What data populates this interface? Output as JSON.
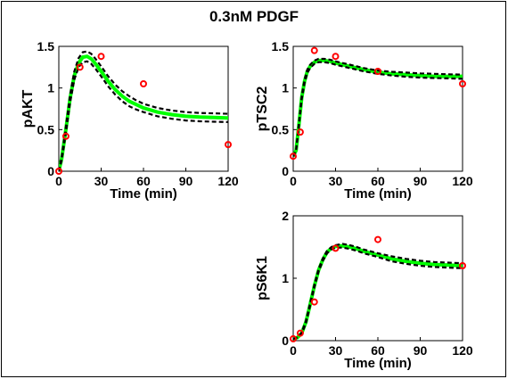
{
  "figure": {
    "title": "0.3nM PDGF"
  },
  "chart_data": [
    {
      "type": "line",
      "id": "pakt",
      "ylabel": "pAKT",
      "xlabel": "Time (min)",
      "xlim": [
        0,
        120
      ],
      "ylim": [
        0,
        1.5
      ],
      "xticks": [
        0,
        30,
        60,
        90,
        120
      ],
      "yticks": [
        0,
        0.5,
        1,
        1.5
      ],
      "ytick_labels": [
        "0",
        "0.5",
        "1",
        "1.5"
      ],
      "grid": false,
      "series": [
        {
          "role": "model-fit",
          "color": "#00ff00",
          "x": [
            0,
            2,
            5,
            8,
            11,
            14,
            17,
            20,
            23,
            26,
            30,
            35,
            40,
            45,
            50,
            55,
            60,
            70,
            80,
            90,
            100,
            110,
            120
          ],
          "y": [
            0,
            0.15,
            0.5,
            0.88,
            1.15,
            1.3,
            1.37,
            1.38,
            1.35,
            1.29,
            1.2,
            1.08,
            0.98,
            0.9,
            0.84,
            0.8,
            0.76,
            0.71,
            0.68,
            0.66,
            0.65,
            0.645,
            0.64
          ]
        },
        {
          "role": "upper-bound",
          "color": "#000000",
          "x": [
            0,
            2,
            5,
            8,
            11,
            14,
            17,
            20,
            23,
            26,
            30,
            35,
            40,
            45,
            50,
            55,
            60,
            70,
            80,
            90,
            100,
            110,
            120
          ],
          "y": [
            0,
            0.17,
            0.53,
            0.92,
            1.2,
            1.36,
            1.43,
            1.44,
            1.41,
            1.35,
            1.26,
            1.14,
            1.04,
            0.96,
            0.9,
            0.85,
            0.81,
            0.76,
            0.73,
            0.71,
            0.7,
            0.695,
            0.69
          ]
        },
        {
          "role": "lower-bound",
          "color": "#000000",
          "x": [
            0,
            2,
            5,
            8,
            11,
            14,
            17,
            20,
            23,
            26,
            30,
            35,
            40,
            45,
            50,
            55,
            60,
            70,
            80,
            90,
            100,
            110,
            120
          ],
          "y": [
            0,
            0.13,
            0.46,
            0.83,
            1.1,
            1.25,
            1.31,
            1.32,
            1.29,
            1.23,
            1.14,
            1.02,
            0.92,
            0.84,
            0.78,
            0.74,
            0.71,
            0.66,
            0.63,
            0.61,
            0.6,
            0.595,
            0.59
          ]
        }
      ],
      "data_points": {
        "color": "#ff0000",
        "x": [
          0,
          5,
          15,
          30,
          60,
          120
        ],
        "y": [
          0.0,
          0.42,
          1.25,
          1.38,
          1.05,
          0.32
        ]
      }
    },
    {
      "type": "line",
      "id": "ptsc2",
      "ylabel": "pTSC2",
      "xlabel": "Time (min)",
      "xlim": [
        0,
        120
      ],
      "ylim": [
        0,
        1.5
      ],
      "xticks": [
        0,
        30,
        60,
        90,
        120
      ],
      "yticks": [
        0,
        0.5,
        1,
        1.5
      ],
      "ytick_labels": [
        "0",
        "0.5",
        "1",
        "1.5"
      ],
      "grid": false,
      "series": [
        {
          "role": "model-fit",
          "color": "#00ff00",
          "x": [
            0,
            2,
            4,
            6,
            8,
            10,
            12,
            15,
            18,
            22,
            26,
            30,
            35,
            40,
            50,
            60,
            70,
            80,
            90,
            100,
            110,
            120
          ],
          "y": [
            0.18,
            0.25,
            0.55,
            0.88,
            1.08,
            1.2,
            1.26,
            1.31,
            1.33,
            1.33,
            1.32,
            1.3,
            1.28,
            1.26,
            1.22,
            1.19,
            1.17,
            1.16,
            1.15,
            1.14,
            1.14,
            1.14
          ]
        },
        {
          "role": "upper-bound",
          "color": "#000000",
          "x": [
            0,
            2,
            4,
            6,
            8,
            10,
            12,
            15,
            18,
            22,
            26,
            30,
            35,
            40,
            50,
            60,
            70,
            80,
            90,
            100,
            110,
            120
          ],
          "y": [
            0.18,
            0.26,
            0.57,
            0.9,
            1.1,
            1.22,
            1.28,
            1.33,
            1.35,
            1.35,
            1.34,
            1.32,
            1.3,
            1.28,
            1.24,
            1.21,
            1.195,
            1.185,
            1.175,
            1.17,
            1.165,
            1.16
          ]
        },
        {
          "role": "lower-bound",
          "color": "#000000",
          "x": [
            0,
            2,
            4,
            6,
            8,
            10,
            12,
            15,
            18,
            22,
            26,
            30,
            35,
            40,
            50,
            60,
            70,
            80,
            90,
            100,
            110,
            120
          ],
          "y": [
            0.18,
            0.24,
            0.53,
            0.86,
            1.06,
            1.18,
            1.24,
            1.29,
            1.31,
            1.31,
            1.3,
            1.28,
            1.26,
            1.24,
            1.2,
            1.17,
            1.15,
            1.135,
            1.125,
            1.12,
            1.115,
            1.11
          ]
        }
      ],
      "data_points": {
        "color": "#ff0000",
        "x": [
          0,
          5,
          15,
          30,
          60,
          120
        ],
        "y": [
          0.18,
          0.47,
          1.45,
          1.38,
          1.2,
          1.05
        ]
      }
    },
    {
      "type": "line",
      "id": "ps6k1",
      "ylabel": "pS6K1",
      "xlabel": "Time (min)",
      "xlim": [
        0,
        120
      ],
      "ylim": [
        0,
        2
      ],
      "xticks": [
        0,
        30,
        60,
        90,
        120
      ],
      "yticks": [
        0,
        1,
        2
      ],
      "ytick_labels": [
        "0",
        "1",
        "2"
      ],
      "grid": false,
      "series": [
        {
          "role": "model-fit",
          "color": "#00ff00",
          "x": [
            0,
            3,
            6,
            9,
            12,
            15,
            18,
            21,
            24,
            27,
            30,
            35,
            40,
            45,
            50,
            60,
            70,
            80,
            90,
            100,
            110,
            120
          ],
          "y": [
            0.03,
            0.05,
            0.12,
            0.3,
            0.58,
            0.88,
            1.13,
            1.3,
            1.42,
            1.48,
            1.51,
            1.52,
            1.5,
            1.47,
            1.43,
            1.37,
            1.31,
            1.27,
            1.24,
            1.22,
            1.21,
            1.2
          ]
        },
        {
          "role": "upper-bound",
          "color": "#000000",
          "x": [
            0,
            3,
            6,
            9,
            12,
            15,
            18,
            21,
            24,
            27,
            30,
            35,
            40,
            45,
            50,
            60,
            70,
            80,
            90,
            100,
            110,
            120
          ],
          "y": [
            0.03,
            0.05,
            0.13,
            0.32,
            0.6,
            0.9,
            1.15,
            1.32,
            1.44,
            1.5,
            1.53,
            1.55,
            1.53,
            1.5,
            1.46,
            1.4,
            1.35,
            1.31,
            1.28,
            1.26,
            1.25,
            1.24
          ]
        },
        {
          "role": "lower-bound",
          "color": "#000000",
          "x": [
            0,
            3,
            6,
            9,
            12,
            15,
            18,
            21,
            24,
            27,
            30,
            35,
            40,
            45,
            50,
            60,
            70,
            80,
            90,
            100,
            110,
            120
          ],
          "y": [
            0.03,
            0.05,
            0.11,
            0.28,
            0.56,
            0.86,
            1.11,
            1.28,
            1.4,
            1.46,
            1.49,
            1.49,
            1.47,
            1.44,
            1.4,
            1.34,
            1.27,
            1.23,
            1.2,
            1.18,
            1.17,
            1.16
          ]
        }
      ],
      "data_points": {
        "color": "#ff0000",
        "x": [
          0,
          5,
          15,
          30,
          60,
          120
        ],
        "y": [
          0.03,
          0.12,
          0.62,
          1.48,
          1.62,
          1.2
        ]
      }
    }
  ]
}
